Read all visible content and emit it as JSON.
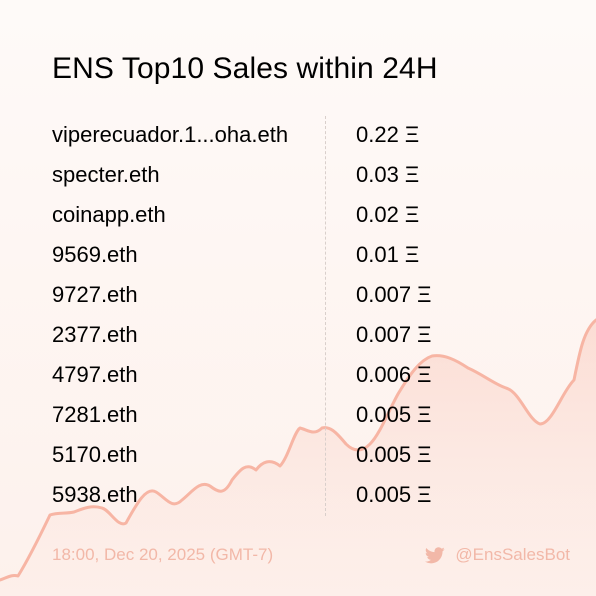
{
  "title": "ENS Top10 Sales within 24H",
  "sales": [
    {
      "name": "viperecuador.1...oha.eth",
      "price": "0.22 Ξ"
    },
    {
      "name": "specter.eth",
      "price": "0.03 Ξ"
    },
    {
      "name": "coinapp.eth",
      "price": "0.02 Ξ"
    },
    {
      "name": "9569.eth",
      "price": "0.01 Ξ"
    },
    {
      "name": "9727.eth",
      "price": "0.007 Ξ"
    },
    {
      "name": "2377.eth",
      "price": "0.007 Ξ"
    },
    {
      "name": "4797.eth",
      "price": "0.006 Ξ"
    },
    {
      "name": "7281.eth",
      "price": "0.005 Ξ"
    },
    {
      "name": "5170.eth",
      "price": "0.005 Ξ"
    },
    {
      "name": "5938.eth",
      "price": "0.005 Ξ"
    }
  ],
  "footer": {
    "timestamp": "18:00, Dec 20, 2025 (GMT-7)",
    "handle": "@EnsSalesBot",
    "icon": "twitter-icon"
  },
  "colors": {
    "accent": "#f7b5a4",
    "footer_text": "#f2b8a8",
    "background": "#fdf3f0"
  }
}
